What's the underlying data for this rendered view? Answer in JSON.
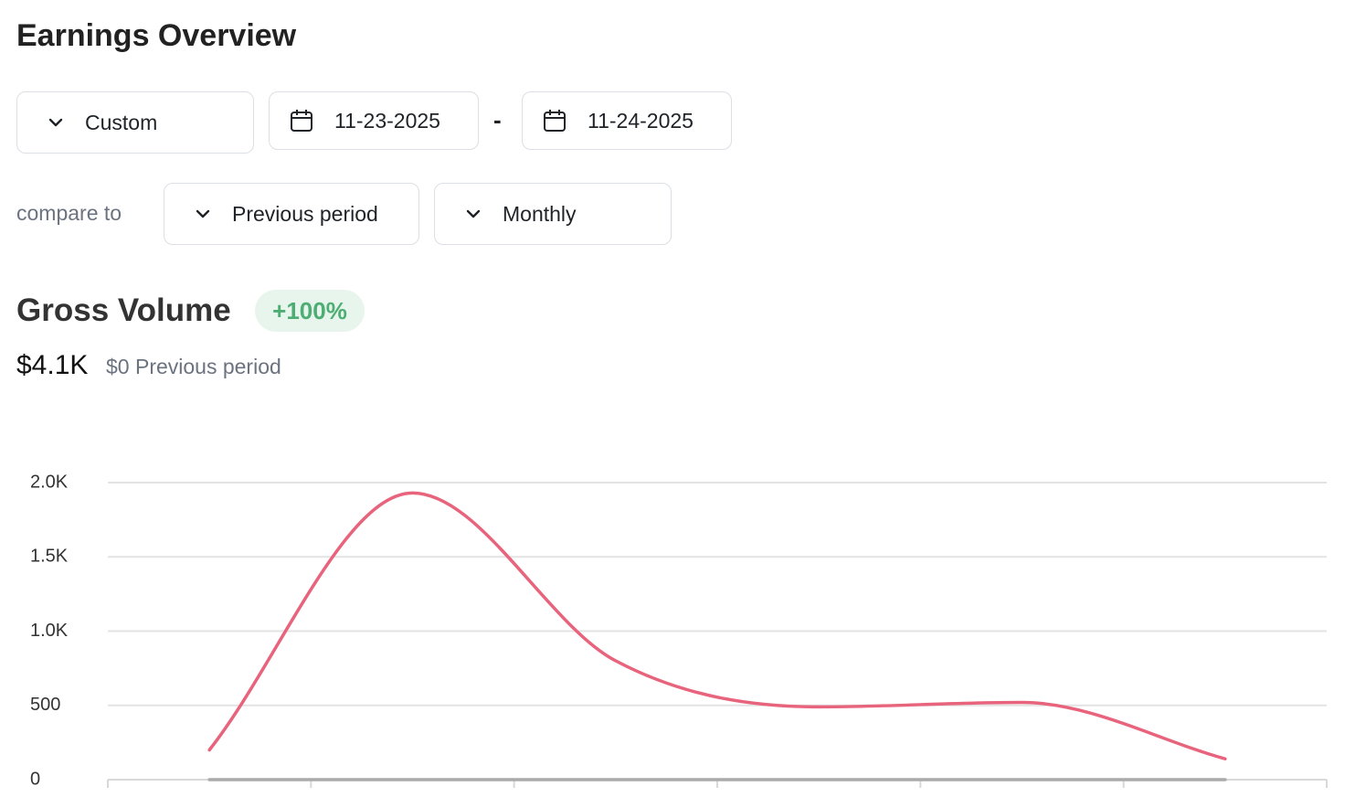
{
  "header": {
    "title": "Earnings Overview"
  },
  "filters": {
    "range": "Custom",
    "start_date": "11-23-2025",
    "separator": "-",
    "end_date": "11-24-2025",
    "compare_label": "compare to",
    "compare": "Previous period",
    "interval": "Monthly"
  },
  "summary": {
    "title": "Gross Volume",
    "change": "+100%",
    "amount": "$4.1K",
    "previous": "$0 Previous period"
  },
  "chart_data": {
    "type": "line",
    "categories": [
      null,
      null,
      null,
      null,
      null,
      null
    ],
    "series": [
      {
        "color": "#e8637c",
        "values": [
          200,
          1930,
          800,
          490,
          520,
          140
        ]
      },
      {
        "color": "#aaaaaa",
        "values": [
          0,
          0,
          0,
          0,
          0,
          0
        ]
      }
    ],
    "ylim": [
      0,
      2000
    ],
    "yticks": [
      0,
      500,
      {
        "value": 1000,
        "label": "1.0K"
      },
      {
        "value": 1500,
        "label": "1.5K"
      },
      {
        "value": 2000,
        "label": "2.0K"
      }
    ],
    "grid": true,
    "smooth": true
  }
}
